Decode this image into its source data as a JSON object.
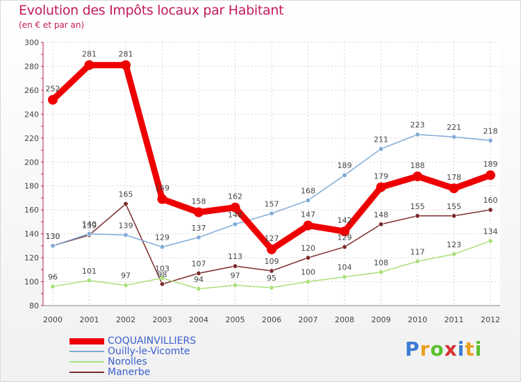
{
  "header": {
    "title": "Evolution des Impôts locaux par Habitant",
    "subtitle": "(en € et par an)"
  },
  "logo": {
    "letters": [
      "P",
      "r",
      "o",
      "x",
      "i",
      "t",
      "i"
    ],
    "colors": [
      "#3a7bd5",
      "#e8a020",
      "#5bbf2b",
      "#d93030",
      "#3a7bd5",
      "#e8a020",
      "#5bbf2b"
    ]
  },
  "chart_data": {
    "type": "line",
    "categories": [
      "2000",
      "2001",
      "2002",
      "2003",
      "2004",
      "2005",
      "2006",
      "2007",
      "2008",
      "2009",
      "2010",
      "2011",
      "2012"
    ],
    "ylim": [
      80,
      300
    ],
    "yticks": [
      80,
      100,
      120,
      140,
      160,
      180,
      200,
      220,
      240,
      260,
      280,
      300
    ],
    "grid": true,
    "legend_position": "bottom-left",
    "series": [
      {
        "name": "COQUAINVILLIERS",
        "color": "#ee0000",
        "values": [
          252,
          281,
          281,
          169,
          158,
          162,
          127,
          147,
          142,
          179,
          188,
          178,
          189
        ]
      },
      {
        "name": "Ouilly-le-Vicomte",
        "color": "#7fa9d6",
        "values": [
          130,
          140,
          139,
          129,
          137,
          148,
          157,
          168,
          189,
          211,
          223,
          221,
          218
        ]
      },
      {
        "name": "Norolles",
        "color": "#a8e07a",
        "values": [
          96,
          101,
          97,
          103,
          94,
          97,
          95,
          100,
          104,
          108,
          117,
          123,
          134
        ]
      },
      {
        "name": "Manerbe",
        "color": "#7b2a2a",
        "values": [
          130,
          139,
          165,
          98,
          107,
          113,
          109,
          120,
          129,
          148,
          155,
          155,
          160
        ]
      }
    ]
  }
}
